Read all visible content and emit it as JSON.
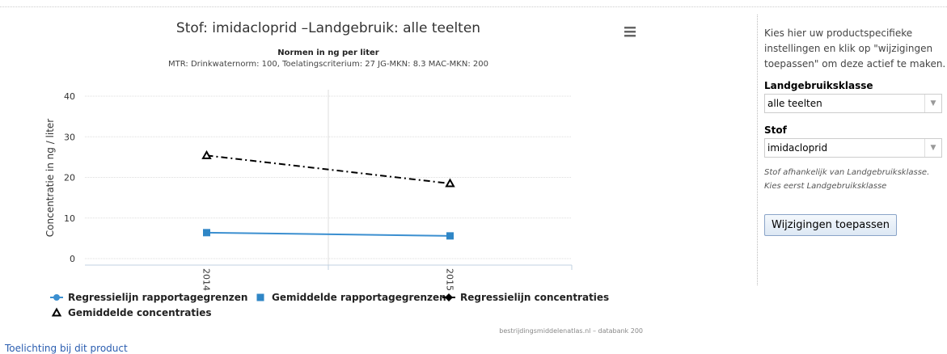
{
  "chart_data": {
    "type": "line",
    "title": "Stof: imidacloprid –Landgebruik: alle teelten",
    "subtitle": "Normen in ng per liter",
    "note": "MTR: Drinkwaternorm: 100, Toelatingscriterium: 27 JG-MKN: 8.3 MAC-MKN: 200",
    "y_label": "Concentratie in ng / liter",
    "categories": [
      "2014",
      "2015"
    ],
    "ylim": [
      0,
      40
    ],
    "yticks": [
      0,
      10,
      20,
      30,
      40
    ],
    "grid": true,
    "series": [
      {
        "name": "Regressielijn rapportagegrenzen",
        "color": "#3b8fd0",
        "style": "solid",
        "marker": "none",
        "legend_marker": "circle",
        "values": [
          6.4,
          5.6
        ]
      },
      {
        "name": "Gemiddelde rapportagegrenzen",
        "color": "#2f86c6",
        "style": "none",
        "marker": "square",
        "legend_marker": "square",
        "values": [
          6.4,
          5.6
        ]
      },
      {
        "name": "Regressielijn concentraties",
        "color": "#000000",
        "style": "dashdot",
        "marker": "none",
        "legend_marker": "diamond",
        "values": [
          25.4,
          18.5
        ]
      },
      {
        "name": "Gemiddelde concentraties",
        "color": "#000000",
        "style": "none",
        "marker": "triangle",
        "legend_marker": "triangle",
        "values": [
          25.4,
          18.5
        ]
      }
    ],
    "credits": "bestrijdingsmiddelenatlas.nl – databank 200"
  },
  "sidebar": {
    "intro": "Kies hier uw productspecifieke instellingen en klik op \"wijzigingen toepassen\" om deze actief te maken.",
    "land_label": "Landgebruiksklasse",
    "land_value": "alle teelten",
    "stof_label": "Stof",
    "stof_value": "imidacloprid",
    "hint": "Stof afhankelijk van Landgebruiksklasse. Kies eerst Landgebruiksklasse",
    "button": "Wijzigingen toepassen"
  },
  "footer_link": "Toelichting bij dit product"
}
